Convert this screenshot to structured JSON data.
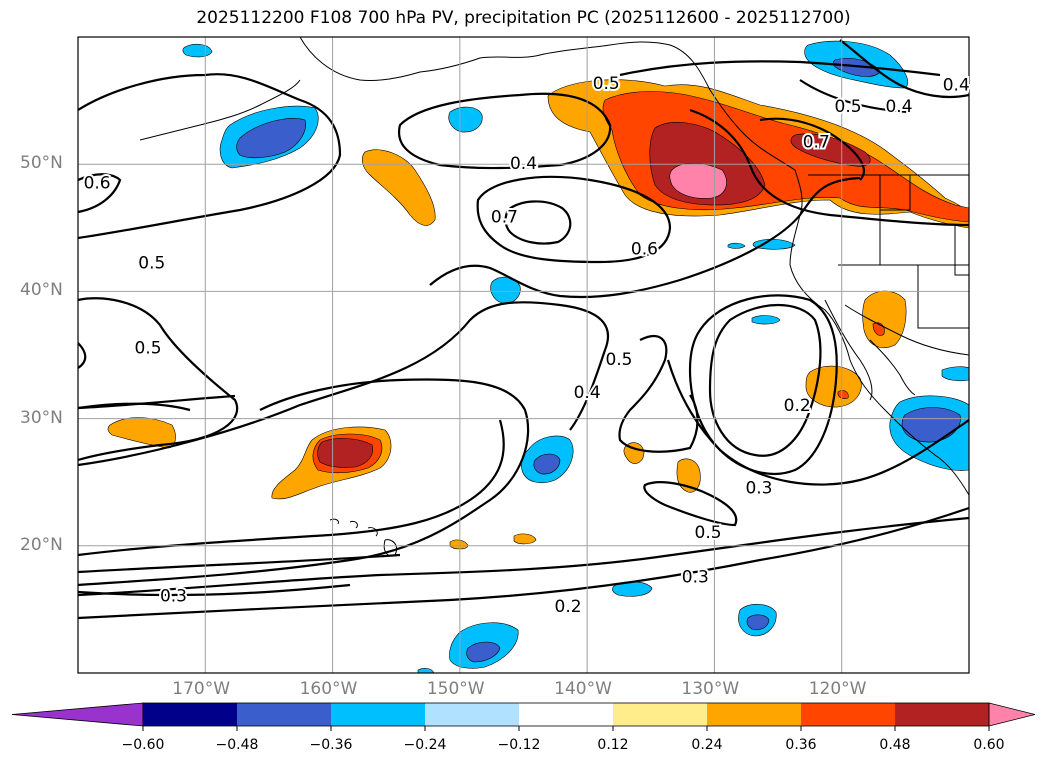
{
  "title": "2025112200 F108 700 hPa PV, precipitation PC (2025112600 - 2025112700)",
  "map": {
    "lon_range": [
      -180,
      -110
    ],
    "lat_range": [
      10,
      60
    ],
    "lat_gridlines": [
      {
        "lat": 50,
        "label": "50°N"
      },
      {
        "lat": 40,
        "label": "40°N"
      },
      {
        "lat": 30,
        "label": "30°N"
      },
      {
        "lat": 20,
        "label": "20°N"
      }
    ],
    "lon_gridlines": [
      {
        "lon": -170,
        "label": "170°W"
      },
      {
        "lon": -160,
        "label": "160°W"
      },
      {
        "lon": -150,
        "label": "150°W"
      },
      {
        "lon": -140,
        "label": "140°W"
      },
      {
        "lon": -130,
        "label": "130°W"
      },
      {
        "lon": -120,
        "label": "120°W"
      }
    ],
    "contour_labels": [
      {
        "text": "0.5",
        "lon": -138.5,
        "lat": 56.3
      },
      {
        "text": "0.4",
        "lon": -111.0,
        "lat": 56.2
      },
      {
        "text": "0.5",
        "lon": -119.5,
        "lat": 54.5
      },
      {
        "text": "0.4",
        "lon": -115.5,
        "lat": 54.5
      },
      {
        "text": "0.7",
        "lon": -122.0,
        "lat": 51.7
      },
      {
        "text": "0.4",
        "lon": -145.0,
        "lat": 50.0
      },
      {
        "text": "0.6",
        "lon": -178.5,
        "lat": 48.5
      },
      {
        "text": "0.7",
        "lon": -146.5,
        "lat": 45.8
      },
      {
        "text": "0.6",
        "lon": -135.5,
        "lat": 43.3
      },
      {
        "text": "0.5",
        "lon": -174.2,
        "lat": 42.2
      },
      {
        "text": "0.5",
        "lon": -174.5,
        "lat": 35.5
      },
      {
        "text": "0.5",
        "lon": -137.5,
        "lat": 34.6
      },
      {
        "text": "0.4",
        "lon": -140.0,
        "lat": 32.0
      },
      {
        "text": "0.2",
        "lon": -123.5,
        "lat": 31.0
      },
      {
        "text": "0.3",
        "lon": -126.5,
        "lat": 24.5
      },
      {
        "text": "0.5",
        "lon": -130.5,
        "lat": 21.0
      },
      {
        "text": "0.3",
        "lon": -131.5,
        "lat": 17.5
      },
      {
        "text": "0.3",
        "lon": -172.5,
        "lat": 16.0
      },
      {
        "text": "0.2",
        "lon": -141.5,
        "lat": 15.2
      }
    ]
  },
  "colorbar": {
    "colors": [
      "#9a32cd",
      "#00008b",
      "#3a5fcd",
      "#00bfff",
      "#b0e2ff",
      "#ffffff",
      "#ffec8b",
      "#ffa500",
      "#ff4500",
      "#b22222",
      "#ff82ab"
    ],
    "tick_labels": [
      "−0.60",
      "−0.48",
      "−0.36",
      "−0.24",
      "−0.12",
      "0.12",
      "0.24",
      "0.36",
      "0.48",
      "0.60"
    ]
  }
}
